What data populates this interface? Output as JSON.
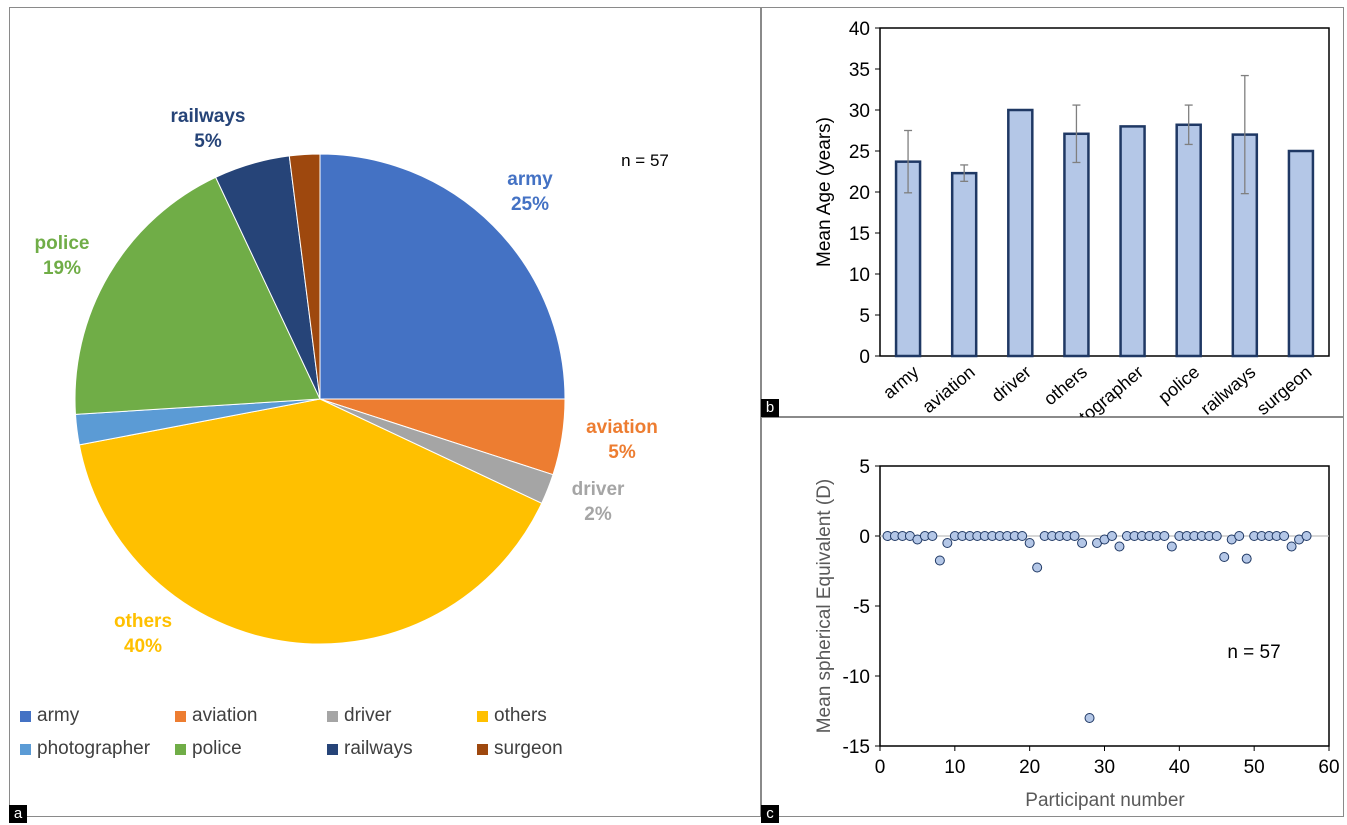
{
  "panels": {
    "a": "a",
    "b": "b",
    "c": "c"
  },
  "chart_data": [
    {
      "type": "pie",
      "annotation": "n = 57",
      "slices": [
        {
          "name": "army",
          "value": 25,
          "label": "25%",
          "color": "#4472C4"
        },
        {
          "name": "aviation",
          "value": 5,
          "label": "5%",
          "color": "#ED7D31"
        },
        {
          "name": "driver",
          "value": 2,
          "label": "2%",
          "color": "#A5A5A5"
        },
        {
          "name": "others",
          "value": 40,
          "label": "40%",
          "color": "#FFC000"
        },
        {
          "name": "photographer",
          "value": 2,
          "label": "",
          "color": "#5B9BD5"
        },
        {
          "name": "police",
          "value": 19,
          "label": "19%",
          "color": "#70AD47"
        },
        {
          "name": "railways",
          "value": 5,
          "label": "5%",
          "color": "#264478"
        },
        {
          "name": "surgeon",
          "value": 2,
          "label": "",
          "color": "#9E480E"
        }
      ],
      "legend_position": "bottom"
    },
    {
      "type": "bar",
      "ylabel": "Mean Age  (years)",
      "ylim": [
        0,
        40
      ],
      "yticks": [
        0,
        5,
        10,
        15,
        20,
        25,
        30,
        35,
        40
      ],
      "categories": [
        "army",
        "aviation",
        "driver",
        "others",
        "photographer",
        "police",
        "railways",
        "surgeon"
      ],
      "values": [
        23.7,
        22.3,
        30.0,
        27.1,
        28.0,
        28.2,
        27.0,
        25.0
      ],
      "error": [
        3.8,
        1.0,
        0,
        3.5,
        0,
        2.4,
        7.2,
        0
      ],
      "bar_color": "#B4C7E7",
      "edge_color": "#1F3864"
    },
    {
      "type": "scatter",
      "xlabel": "Participant number",
      "ylabel": "Mean spherical Equivalent (D)",
      "xlim": [
        0,
        60
      ],
      "ylim": [
        -15,
        5
      ],
      "xticks": [
        0,
        10,
        20,
        30,
        40,
        50,
        60
      ],
      "yticks": [
        5,
        0,
        -5,
        -10,
        -15
      ],
      "annotation": "n = 57",
      "x": [
        1,
        2,
        3,
        4,
        5,
        6,
        7,
        8,
        9,
        10,
        11,
        12,
        13,
        14,
        15,
        16,
        17,
        18,
        19,
        20,
        21,
        22,
        23,
        24,
        25,
        26,
        27,
        28,
        29,
        30,
        31,
        32,
        33,
        34,
        35,
        36,
        37,
        38,
        39,
        40,
        41,
        42,
        43,
        44,
        45,
        46,
        47,
        48,
        49,
        50,
        51,
        52,
        53,
        54,
        55,
        56,
        57
      ],
      "y": [
        0,
        0,
        0,
        0,
        -0.25,
        0,
        0,
        -1.75,
        -0.5,
        0,
        0,
        0,
        0,
        0,
        0,
        0,
        0,
        0,
        0,
        -0.5,
        -2.25,
        0,
        0,
        0,
        0,
        0,
        -0.5,
        -13,
        -0.5,
        -0.25,
        0,
        -0.75,
        0,
        0,
        0,
        0,
        0,
        0,
        -0.75,
        0,
        0,
        0,
        0,
        0,
        0,
        -1.5,
        -0.25,
        0,
        -1.62,
        0,
        0,
        0,
        0,
        0,
        -0.75,
        -0.25,
        0
      ],
      "marker_color": "#B4C7E7"
    }
  ]
}
